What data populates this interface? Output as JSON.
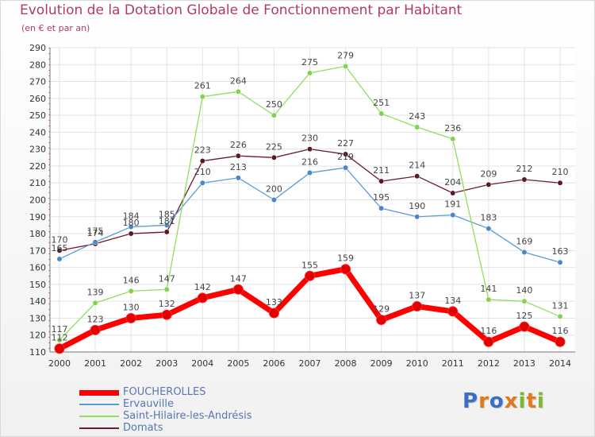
{
  "title": "Evolution de la Dotation Globale de Fonctionnement par Habitant",
  "subtitle": "(en € et par an)",
  "logo": "Proxiti",
  "chart_data": {
    "type": "line",
    "title": "Evolution de la Dotation Globale de Fonctionnement par Habitant",
    "subtitle": "(en € et par an)",
    "x": [
      "2000",
      "2001",
      "2002",
      "2003",
      "2004",
      "2005",
      "2006",
      "2007",
      "2008",
      "2009",
      "2010",
      "2011",
      "2012",
      "2013",
      "2014"
    ],
    "ylim": [
      110,
      290
    ],
    "yticks": [
      110,
      120,
      130,
      140,
      150,
      160,
      170,
      180,
      190,
      200,
      210,
      220,
      230,
      240,
      250,
      260,
      270,
      280,
      290
    ],
    "grid": true,
    "legend_position": "bottom-left",
    "series": [
      {
        "name": "FOUCHEROLLES",
        "color": "#ff0000",
        "values": [
          112,
          123,
          130,
          132,
          142,
          147,
          133,
          155,
          159,
          129,
          137,
          134,
          116,
          125,
          116
        ]
      },
      {
        "name": "Ervauville",
        "color": "#5b9bd5",
        "values": [
          165,
          175,
          184,
          185,
          210,
          213,
          200,
          216,
          219,
          195,
          190,
          191,
          183,
          169,
          163
        ]
      },
      {
        "name": "Saint-Hilaire-les-Andrésis",
        "color": "#8fdf5f",
        "values": [
          117,
          139,
          146,
          147,
          261,
          264,
          250,
          275,
          279,
          251,
          243,
          236,
          141,
          140,
          131
        ]
      },
      {
        "name": "Domats",
        "color": "#6b1f2a",
        "values": [
          170,
          174,
          180,
          181,
          223,
          226,
          225,
          230,
          227,
          211,
          214,
          204,
          209,
          212,
          210
        ]
      }
    ]
  }
}
